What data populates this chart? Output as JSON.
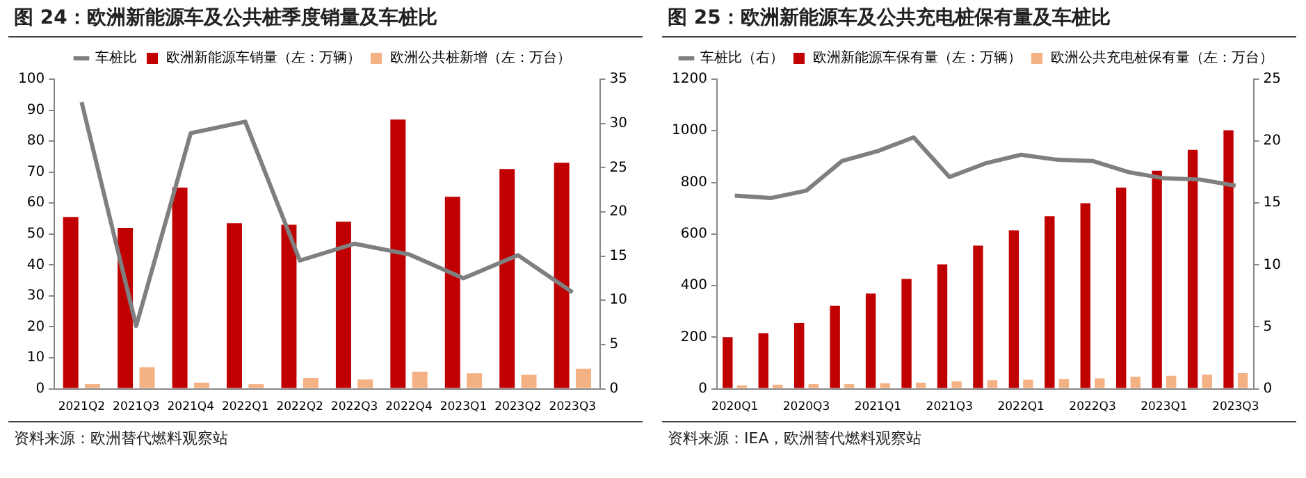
{
  "chart_data": [
    {
      "type": "bar",
      "title": "图 24：欧洲新能源车及公共桩季度销量及车桩比",
      "categories": [
        "2021Q2",
        "2021Q3",
        "2021Q4",
        "2022Q1",
        "2022Q2",
        "2022Q3",
        "2022Q4",
        "2023Q1",
        "2023Q2",
        "2023Q3"
      ],
      "series": [
        {
          "name": "欧洲新能源车销量（左：万辆）",
          "color": "#c00000",
          "values": [
            55.5,
            52,
            65,
            53.5,
            53,
            54,
            87,
            62,
            71,
            73
          ]
        },
        {
          "name": "欧洲公共桩新增（左：万台）",
          "color": "#f4b183",
          "values": [
            1.5,
            7,
            2,
            1.5,
            3.5,
            3,
            5.5,
            5,
            4.5,
            6.5
          ]
        },
        {
          "name": "车桩比",
          "type": "line",
          "axis": "y2",
          "color": "#7f7f7f",
          "values": [
            32.4,
            7.1,
            28.9,
            30.2,
            14.5,
            16.4,
            15.2,
            12.5,
            15.1,
            10.9
          ]
        }
      ],
      "ylim": [
        0,
        100
      ],
      "yticks": [
        0,
        10,
        20,
        30,
        40,
        50,
        60,
        70,
        80,
        90,
        100
      ],
      "y2lim": [
        0,
        35
      ],
      "y2ticks": [
        0,
        5,
        10,
        15,
        20,
        25,
        30,
        35
      ],
      "grid": false,
      "legend": "top",
      "marker": "none",
      "annotations": [
        "资料来源：欧洲替代燃料观察站"
      ]
    },
    {
      "type": "bar",
      "title": "图 25：欧洲新能源车及公共充电桩保有量及车桩比",
      "categories": [
        "2020Q1",
        null,
        "2020Q3",
        null,
        "2021Q1",
        null,
        "2021Q3",
        null,
        "2022Q1",
        null,
        "2022Q3",
        null,
        "2023Q1",
        null,
        "2023Q3"
      ],
      "series": [
        {
          "name": "欧洲新能源车保有量（左：万辆）",
          "color": "#c00000",
          "values": [
            200,
            216,
            255,
            322,
            369,
            426,
            482,
            555,
            614,
            669,
            719,
            780,
            845,
            926,
            1002
          ]
        },
        {
          "name": "欧洲公共充电桩保有量（左：万台）",
          "color": "#f4b183",
          "values": [
            14,
            16,
            18,
            18,
            22,
            24,
            29,
            33,
            35,
            37,
            41,
            47,
            51,
            55,
            61
          ]
        },
        {
          "name": "车桩比（右）",
          "type": "line",
          "axis": "y2",
          "color": "#7f7f7f",
          "values": [
            15.6,
            15.4,
            16.0,
            18.4,
            19.2,
            20.3,
            17.1,
            18.2,
            18.9,
            18.5,
            18.4,
            17.5,
            17.0,
            16.9,
            16.4
          ]
        }
      ],
      "ylim": [
        0,
        1200
      ],
      "yticks": [
        0,
        200,
        400,
        600,
        800,
        1000,
        1200
      ],
      "y2lim": [
        0,
        25
      ],
      "y2ticks": [
        0,
        5,
        10,
        15,
        20,
        25
      ],
      "grid": false,
      "legend": "top",
      "marker": "none",
      "annotations": [
        "资料来源：IEA，欧洲替代燃料观察站"
      ]
    }
  ]
}
